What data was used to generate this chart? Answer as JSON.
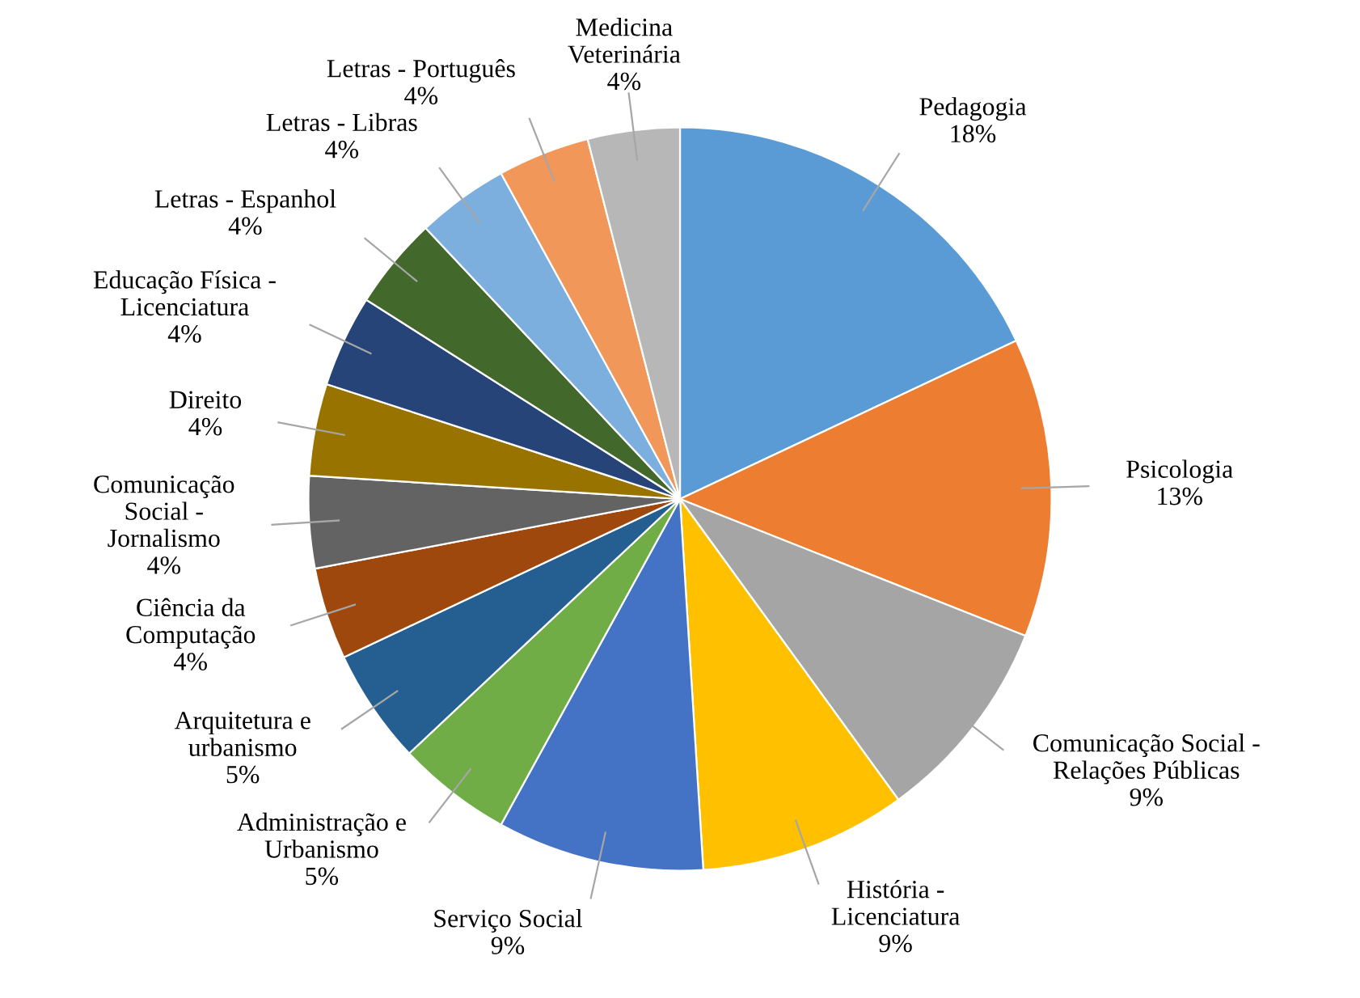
{
  "chart_data": {
    "type": "pie",
    "categories": [
      "Pedagogia",
      "Psicologia",
      "Comunicação Social -\nRelações Públicas",
      "História -\nLicenciatura",
      "Serviço Social",
      "Administração e\nUrbanismo",
      "Arquitetura e\nurbanismo",
      "Ciência da\nComputação",
      "Comunicação\nSocial -\nJornalismo",
      "Direito",
      "Educação Física -\nLicenciatura",
      "Letras - Espanhol",
      "Letras - Libras",
      "Letras - Português",
      "Medicina\nVeterinária"
    ],
    "values": [
      18,
      13,
      9,
      9,
      9,
      5,
      5,
      4,
      4,
      4,
      4,
      4,
      4,
      4,
      4
    ],
    "value_labels": [
      "18%",
      "13%",
      "9%",
      "9%",
      "9%",
      "5%",
      "5%",
      "4%",
      "4%",
      "4%",
      "4%",
      "4%",
      "4%",
      "4%",
      "4%"
    ],
    "colors": [
      "#5b9bd5",
      "#ed7d31",
      "#a5a5a5",
      "#ffc000",
      "#4472c4",
      "#70ad47",
      "#255e91",
      "#9e480e",
      "#636363",
      "#997300",
      "#264478",
      "#43682b",
      "#7cafdd",
      "#f1975a",
      "#b7b7b7"
    ]
  }
}
